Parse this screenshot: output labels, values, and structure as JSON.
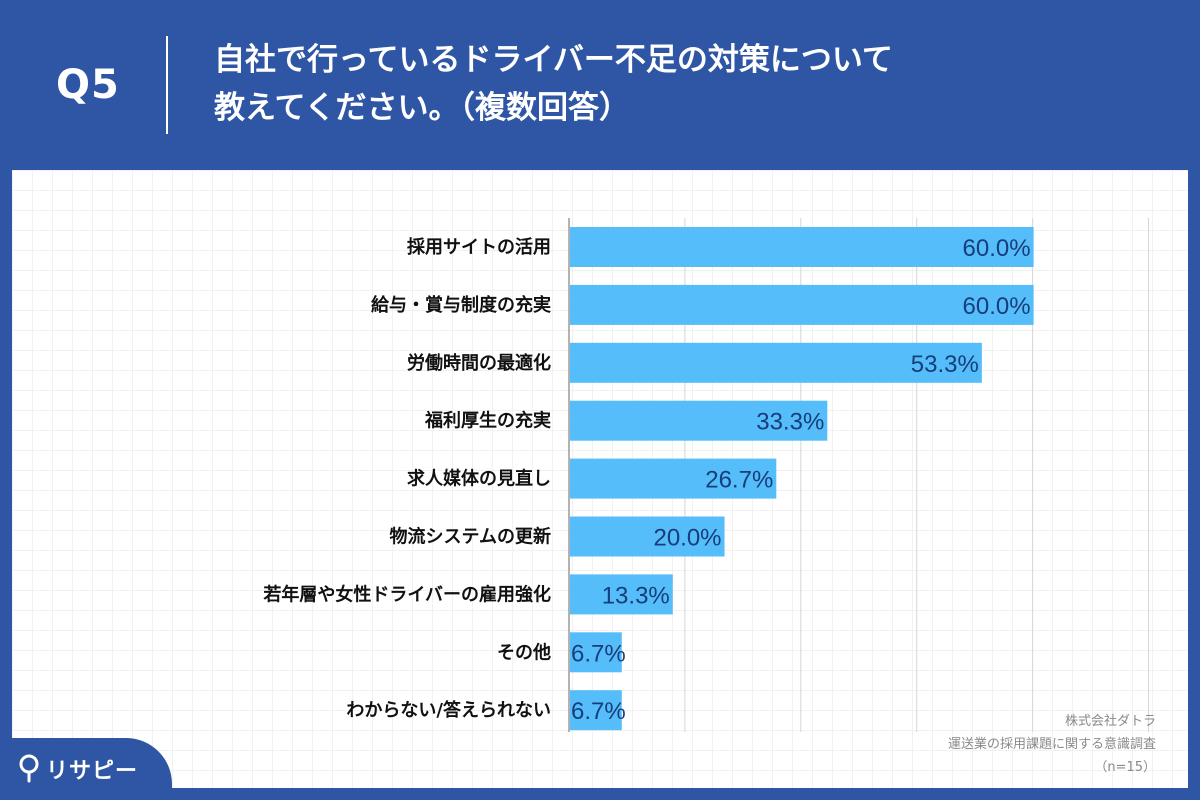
{
  "header": {
    "question_no": "Q5",
    "title_line1": "自社で行っているドライバー不足の対策について",
    "title_line2": "教えてください。（複数回答）"
  },
  "colors": {
    "background": "#2f56a5",
    "bar": "#55bdf9",
    "value_text": "#173e7a"
  },
  "chart_data": {
    "type": "bar",
    "orientation": "horizontal",
    "categories": [
      "採用サイトの活用",
      "給与・賞与制度の充実",
      "労働時間の最適化",
      "福利厚生の充実",
      "求人媒体の見直し",
      "物流システムの更新",
      "若年層や女性ドライバーの雇用強化",
      "その他",
      "わからない/答えられない"
    ],
    "values": [
      60.0,
      60.0,
      53.3,
      33.3,
      26.7,
      20.0,
      13.3,
      6.7,
      6.7
    ],
    "value_labels": [
      "60.0%",
      "60.0%",
      "53.3%",
      "33.3%",
      "26.7%",
      "20.0%",
      "13.3%",
      "6.7%",
      "6.7%"
    ],
    "xlim": [
      0,
      80
    ],
    "grid": true,
    "title": "",
    "xlabel": "",
    "ylabel": ""
  },
  "source": {
    "line1": "株式会社ダトラ",
    "line2": "運送業の採用課題に関する意識調査",
    "line3": "（n=15）"
  },
  "brand": {
    "name": "リサピー",
    "icon": "pin-icon"
  }
}
